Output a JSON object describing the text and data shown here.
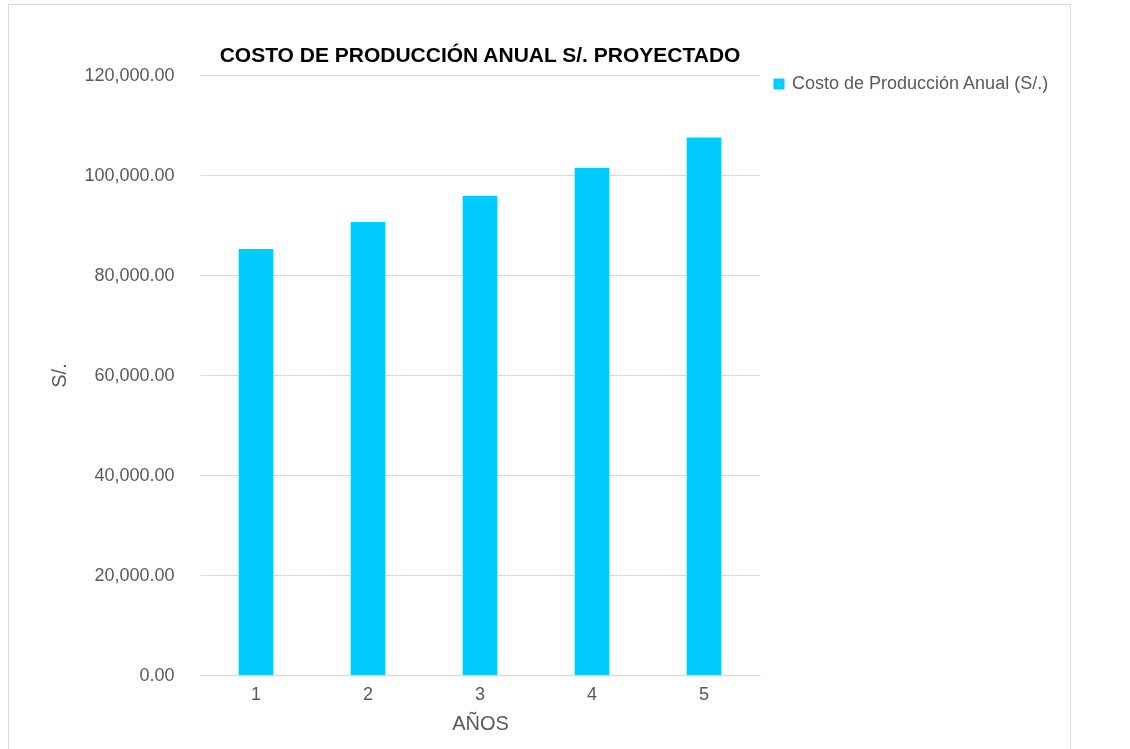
{
  "chart_data": {
    "type": "bar",
    "title": "COSTO DE PRODUCCIÓN ANUAL S/. PROYECTADO",
    "xlabel": "AÑOS",
    "ylabel": "S/.",
    "categories": [
      "1",
      "2",
      "3",
      "4",
      "5"
    ],
    "series": [
      {
        "name": "Costo de Producción Anual (S/.)",
        "color": "#00ccff",
        "values": [
          85200,
          90600,
          95800,
          101400,
          107500
        ]
      }
    ],
    "ylim": [
      0,
      120000
    ],
    "yticks": [
      {
        "value": 0,
        "label": "0.00"
      },
      {
        "value": 20000,
        "label": "20,000.00"
      },
      {
        "value": 40000,
        "label": "40,000.00"
      },
      {
        "value": 60000,
        "label": "60,000.00"
      },
      {
        "value": 80000,
        "label": "80,000.00"
      },
      {
        "value": 100000,
        "label": "100,000.00"
      },
      {
        "value": 120000,
        "label": "120,000.00"
      }
    ],
    "grid": "y",
    "legend": "right"
  }
}
